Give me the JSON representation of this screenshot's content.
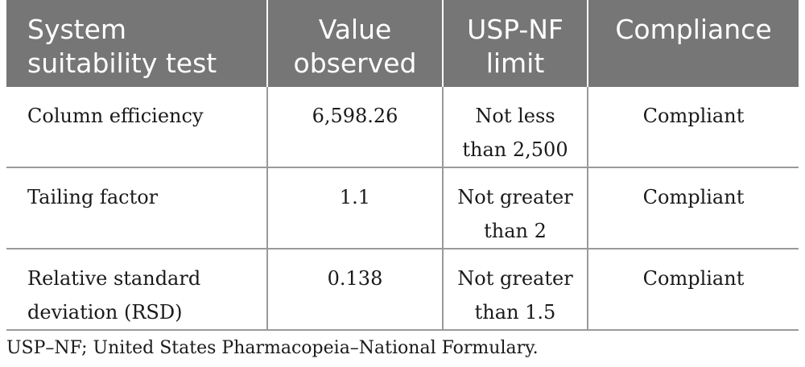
{
  "table": {
    "headers": [
      [
        "System",
        "suitability test"
      ],
      [
        "Value",
        "observed"
      ],
      [
        "USP-NF",
        "limit"
      ],
      [
        "Compliance"
      ]
    ],
    "rows": [
      {
        "test": [
          "Column efficiency"
        ],
        "value": "6,598.26",
        "limit": [
          "Not less",
          "than 2,500"
        ],
        "compliance": "Compliant"
      },
      {
        "test": [
          "Tailing factor"
        ],
        "value": "1.1",
        "limit": [
          "Not greater",
          "than 2"
        ],
        "compliance": "Compliant"
      },
      {
        "test": [
          "Relative standard",
          "deviation (RSD)"
        ],
        "value": "0.138",
        "limit": [
          "Not greater",
          "than 1.5"
        ],
        "compliance": "Compliant"
      }
    ]
  },
  "footnote": "USP–NF; United States Pharmacopeia–National Formulary.",
  "colors": {
    "header_background": "#767676",
    "header_text": "#ffffff",
    "grid_lines": "#9a9a9a"
  }
}
